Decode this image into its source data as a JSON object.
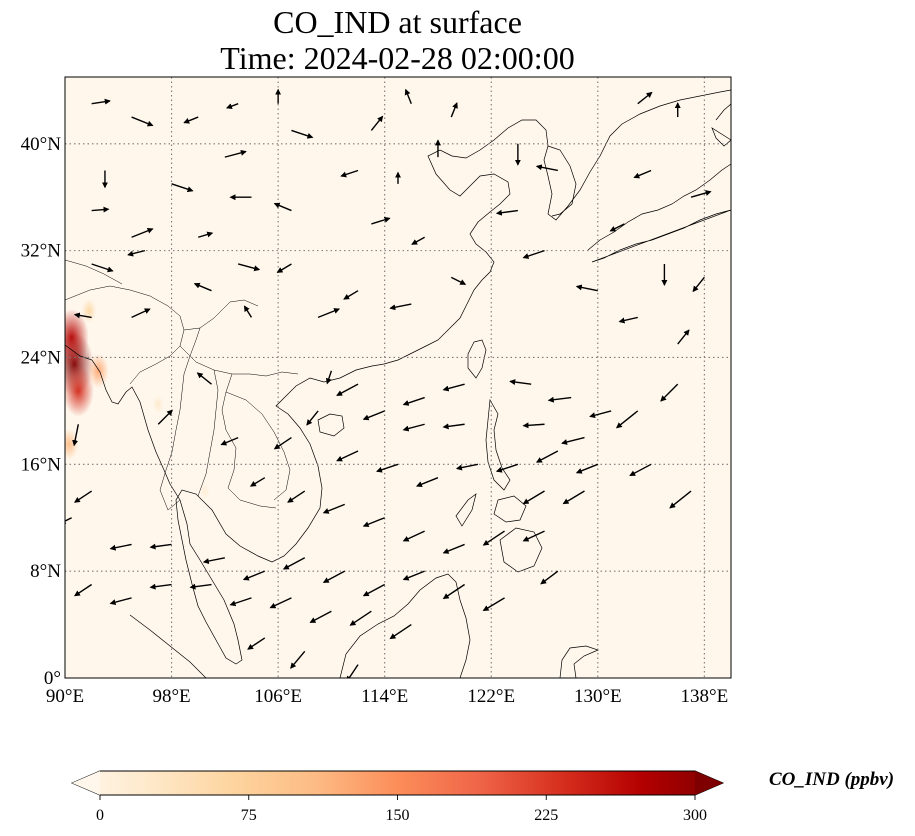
{
  "title": {
    "line1": "CO_IND at surface",
    "line2": "Time: 2024-02-28 02:00:00"
  },
  "map": {
    "extent": {
      "lon_min": 90,
      "lon_max": 140,
      "lat_min": 0,
      "lat_max": 45
    },
    "lon_ticks": [
      {
        "value": 90,
        "label": "90°E"
      },
      {
        "value": 98,
        "label": "98°E"
      },
      {
        "value": 106,
        "label": "106°E"
      },
      {
        "value": 114,
        "label": "114°E"
      },
      {
        "value": 122,
        "label": "122°E"
      },
      {
        "value": 130,
        "label": "130°E"
      },
      {
        "value": 138,
        "label": "138°E"
      }
    ],
    "lat_ticks": [
      {
        "value": 0,
        "label": "0°"
      },
      {
        "value": 8,
        "label": "8°N"
      },
      {
        "value": 16,
        "label": "16°N"
      },
      {
        "value": 24,
        "label": "24°N"
      },
      {
        "value": 32,
        "label": "32°N"
      },
      {
        "value": 40,
        "label": "40°N"
      }
    ],
    "gridlines": true,
    "background_color": "#fff7ec",
    "coastline_color": "#000000"
  },
  "colorbar": {
    "label": "CO_IND (ppbv)",
    "colormap": "OrRd",
    "ticks": [
      "0",
      "75",
      "150",
      "225",
      "300"
    ],
    "range": [
      0,
      300
    ],
    "extend": "both",
    "stops": [
      "#fff7ec",
      "#fee8c8",
      "#fdd49e",
      "#fdbb84",
      "#fc8d59",
      "#ef6548",
      "#d7301f",
      "#b30000",
      "#7f0000"
    ]
  },
  "hotspots": [
    {
      "lon": 90.7,
      "lat": 23.5,
      "value": 300
    },
    {
      "lon": 90.5,
      "lat": 25.5,
      "value": 260
    },
    {
      "lon": 91.0,
      "lat": 21.5,
      "value": 230
    },
    {
      "lon": 90.3,
      "lat": 17.5,
      "value": 110
    },
    {
      "lon": 92.5,
      "lat": 23.0,
      "value": 130
    },
    {
      "lon": 91.8,
      "lat": 27.5,
      "value": 70
    },
    {
      "lon": 97.0,
      "lat": 20.5,
      "value": 35
    },
    {
      "lon": 100.5,
      "lat": 14.0,
      "value": 25
    }
  ],
  "wind_vectors": [
    [
      92,
      43,
      1.3,
      0.2
    ],
    [
      95,
      42,
      1.5,
      -0.6
    ],
    [
      93,
      38,
      0,
      -1.2
    ],
    [
      92,
      35,
      1.2,
      0.1
    ],
    [
      95,
      33,
      1.5,
      0.6
    ],
    [
      92,
      31,
      1.5,
      -0.5
    ],
    [
      96,
      32,
      -1.2,
      -0.3
    ],
    [
      92,
      27,
      -1.2,
      0.2
    ],
    [
      95,
      27,
      1.3,
      0.6
    ],
    [
      91,
      19,
      -0.3,
      -1.5
    ],
    [
      92,
      14,
      -1.2,
      -0.8
    ],
    [
      90.5,
      12,
      -0.8,
      -0.4
    ],
    [
      100,
      42,
      -1,
      -0.4
    ],
    [
      103,
      43,
      -0.8,
      -0.3
    ],
    [
      106,
      43,
      0,
      1
    ],
    [
      107,
      41,
      1.5,
      -0.5
    ],
    [
      102,
      39,
      1.5,
      0.4
    ],
    [
      98,
      37,
      1.5,
      -0.5
    ],
    [
      104,
      36,
      -1.5,
      0
    ],
    [
      107,
      35,
      -1.2,
      0.5
    ],
    [
      100,
      33,
      1,
      0.3
    ],
    [
      103,
      31,
      1.5,
      -0.4
    ],
    [
      101,
      29,
      -1.2,
      0.5
    ],
    [
      107,
      31,
      -1,
      -0.6
    ],
    [
      109,
      27,
      1.5,
      0.6
    ],
    [
      104,
      27,
      -0.5,
      0.8
    ],
    [
      113,
      41,
      0.8,
      1
    ],
    [
      116,
      43,
      -0.4,
      1
    ],
    [
      119,
      42,
      0.4,
      1
    ],
    [
      112,
      38,
      -1.2,
      -0.4
    ],
    [
      115,
      37,
      0,
      0.8
    ],
    [
      118,
      39,
      0,
      1.2
    ],
    [
      113,
      34,
      1.3,
      0.4
    ],
    [
      117,
      33,
      -0.9,
      -0.5
    ],
    [
      112,
      29,
      -1,
      -0.6
    ],
    [
      116,
      28,
      -1.5,
      -0.3
    ],
    [
      119,
      30,
      1,
      -0.5
    ],
    [
      124,
      40,
      0,
      -1.5
    ],
    [
      127,
      38,
      -1.5,
      0.3
    ],
    [
      124,
      35,
      -1.5,
      -0.2
    ],
    [
      126,
      32,
      -1.5,
      -0.5
    ],
    [
      133,
      43,
      1,
      0.8
    ],
    [
      136,
      42,
      0,
      1
    ],
    [
      134,
      38,
      -1.2,
      -0.5
    ],
    [
      137,
      36,
      1.4,
      0.4
    ],
    [
      132,
      34,
      -1,
      -0.5
    ],
    [
      135,
      31,
      0,
      -1.5
    ],
    [
      138,
      30,
      -0.8,
      -1
    ],
    [
      130,
      29,
      -1.5,
      0.3
    ],
    [
      133,
      27,
      -1.3,
      -0.3
    ],
    [
      136,
      25,
      0.8,
      1
    ],
    [
      112,
      22,
      -1.5,
      -0.8
    ],
    [
      117,
      21,
      -1.5,
      -0.5
    ],
    [
      120,
      22,
      -1.5,
      -0.4
    ],
    [
      114,
      20,
      -1.5,
      -0.6
    ],
    [
      117,
      19,
      -1.5,
      -0.4
    ],
    [
      120,
      19,
      -1.5,
      -0.2
    ],
    [
      125,
      22,
      -1.5,
      0.2
    ],
    [
      128,
      21,
      -1.6,
      -0.2
    ],
    [
      131,
      20,
      -1.5,
      -0.4
    ],
    [
      126,
      19,
      -1.5,
      -0.1
    ],
    [
      129,
      18,
      -1.6,
      -0.4
    ],
    [
      133,
      20,
      -1.5,
      -1.2
    ],
    [
      136,
      22,
      -1.2,
      -1.2
    ],
    [
      112,
      17,
      -1.5,
      -0.7
    ],
    [
      115,
      16,
      -1.5,
      -0.5
    ],
    [
      118,
      15,
      -1.5,
      -0.6
    ],
    [
      121,
      16,
      -1.5,
      -0.3
    ],
    [
      124,
      16,
      -1.5,
      -0.5
    ],
    [
      127,
      17,
      -1.5,
      -0.8
    ],
    [
      130,
      16,
      -1.5,
      -0.6
    ],
    [
      134,
      16,
      -1.5,
      -0.8
    ],
    [
      137,
      14,
      -1.5,
      -1.2
    ],
    [
      126,
      14,
      -1.5,
      -0.9
    ],
    [
      129,
      14,
      -1.5,
      -0.9
    ],
    [
      108,
      14,
      -1.2,
      -0.8
    ],
    [
      111,
      13,
      -1.5,
      -0.6
    ],
    [
      114,
      12,
      -1.5,
      -0.6
    ],
    [
      117,
      11,
      -1.5,
      -0.7
    ],
    [
      120,
      10,
      -1.5,
      -0.6
    ],
    [
      123,
      11,
      -1.5,
      -1
    ],
    [
      126,
      11,
      -1.5,
      -0.7
    ],
    [
      108,
      9,
      -1.5,
      -0.8
    ],
    [
      111,
      8,
      -1.5,
      -0.8
    ],
    [
      114,
      7,
      -1.5,
      -0.8
    ],
    [
      117,
      8,
      -1.5,
      -0.6
    ],
    [
      120,
      7,
      -1.5,
      -1
    ],
    [
      123,
      6,
      -1.5,
      -0.9
    ],
    [
      127,
      8,
      -1.2,
      -0.9
    ],
    [
      98,
      10,
      -1.5,
      -0.2
    ],
    [
      102,
      9,
      -1.5,
      -0.3
    ],
    [
      105,
      8,
      -1.5,
      -0.6
    ],
    [
      98,
      7,
      -1.5,
      -0.2
    ],
    [
      101,
      7,
      -1.5,
      -0.2
    ],
    [
      104,
      6,
      -1.5,
      -0.5
    ],
    [
      107,
      6,
      -1.5,
      -0.7
    ],
    [
      110,
      5,
      -1.5,
      -0.8
    ],
    [
      113,
      5,
      -1.5,
      -1
    ],
    [
      116,
      4,
      -1.5,
      -1
    ],
    [
      105,
      3,
      -1.2,
      -0.8
    ],
    [
      108,
      2,
      -1,
      -1.2
    ],
    [
      112,
      1,
      -0.8,
      -1.2
    ],
    [
      95,
      6,
      -1.5,
      -0.4
    ],
    [
      95,
      10,
      -1.5,
      -0.3
    ],
    [
      92,
      7,
      -1.2,
      -0.8
    ],
    [
      97,
      19,
      1,
      1
    ],
    [
      101,
      22,
      -1,
      0.8
    ],
    [
      103,
      18,
      -1.2,
      -0.5
    ],
    [
      105,
      15,
      -1,
      -0.6
    ],
    [
      107,
      18,
      -1.2,
      -0.8
    ],
    [
      109,
      20,
      -0.8,
      -1
    ],
    [
      110,
      23,
      -0.3,
      -0.9
    ]
  ]
}
